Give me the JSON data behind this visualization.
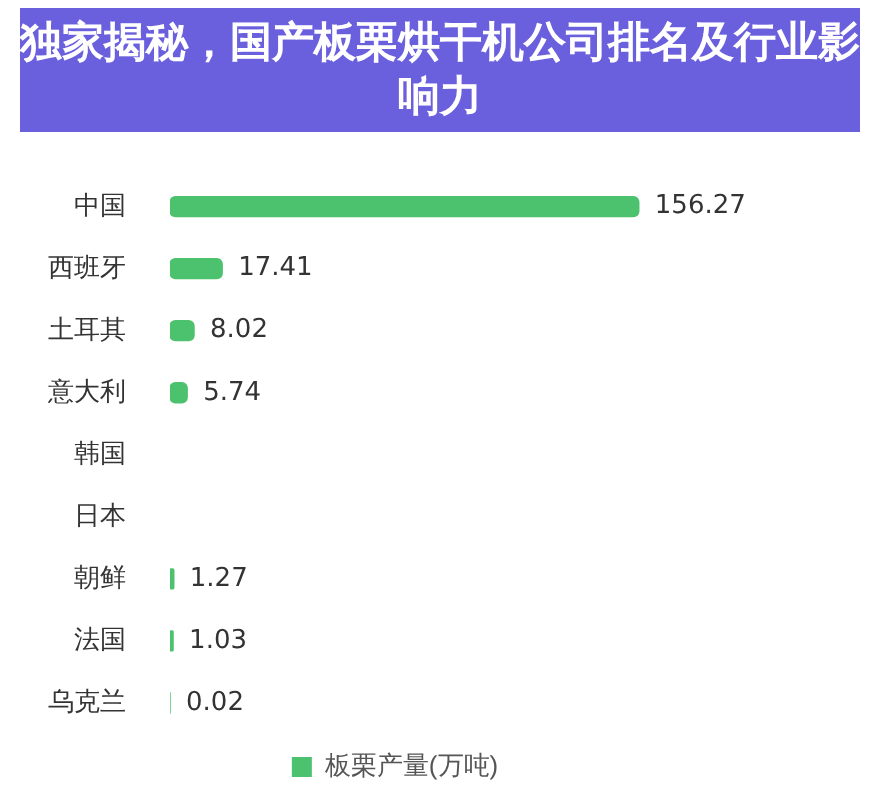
{
  "chart_data": {
    "type": "bar",
    "orientation": "horizontal",
    "title": "独家揭秘，国产板栗烘干机公司排名及行业影响力",
    "categories": [
      "中国",
      "西班牙",
      "土耳其",
      "意大利",
      "韩国",
      "日本",
      "朝鲜",
      "法国",
      "乌克兰"
    ],
    "series": [
      {
        "name": "板栗产量(万吨)",
        "color": "#4cc26e",
        "values": [
          156.27,
          17.41,
          8.02,
          5.74,
          null,
          null,
          1.27,
          1.03,
          0.02
        ]
      }
    ],
    "data_labels": true,
    "legend": "bottom",
    "grid": false
  }
}
